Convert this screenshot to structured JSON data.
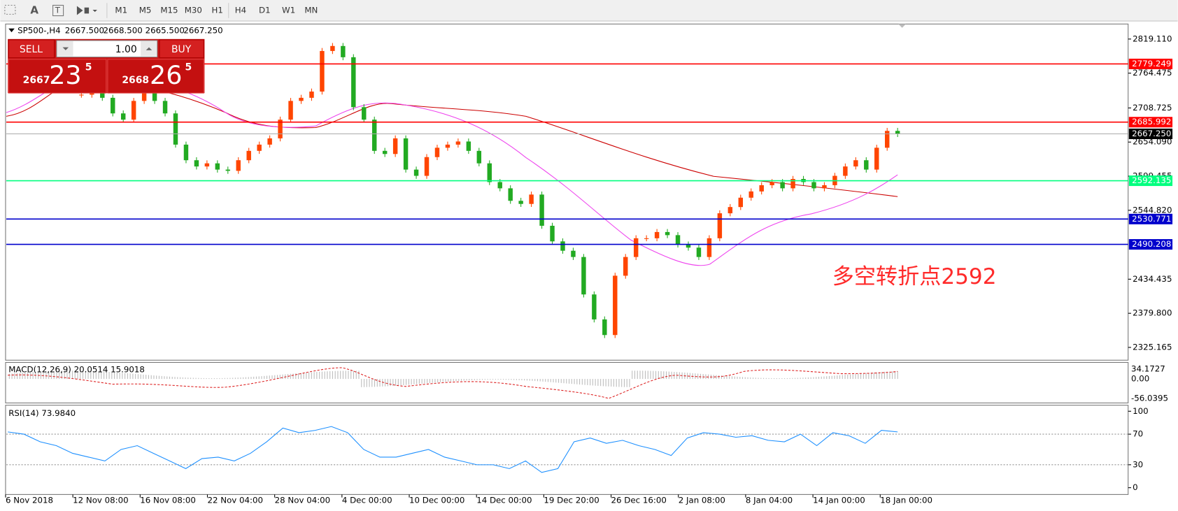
{
  "toolbar": {
    "timeframes": [
      "M1",
      "M5",
      "M15",
      "M30",
      "H1",
      "H4",
      "D1",
      "W1",
      "MN"
    ]
  },
  "chart": {
    "type": "candlestick",
    "symbol": "SP500-,H4",
    "ohlc": [
      "2667.500",
      "2668.500",
      "2665.500",
      "2667.250"
    ],
    "ylim": [
      2304.7,
      2843.2
    ],
    "yticks": [
      {
        "value": 2819.11,
        "label": "2819.110"
      },
      {
        "value": 2764.475,
        "label": "2764.475"
      },
      {
        "value": 2708.725,
        "label": "2708.725"
      },
      {
        "value": 2654.09,
        "label": "2654.090"
      },
      {
        "value": 2599.455,
        "label": "2599.455"
      },
      {
        "value": 2544.82,
        "label": "2544.820"
      },
      {
        "value": 2434.435,
        "label": "2434.435"
      },
      {
        "value": 2379.8,
        "label": "2379.800"
      },
      {
        "value": 2325.165,
        "label": "2325.165"
      }
    ],
    "levels": [
      {
        "value": 2779.249,
        "label": "2779.249",
        "color": "#ff0000"
      },
      {
        "value": 2685.992,
        "label": "2685.992",
        "color": "#ff0000"
      },
      {
        "value": 2592.135,
        "label": "2592.135",
        "color": "#00ff7f"
      },
      {
        "value": 2530.771,
        "label": "2530.771",
        "color": "#0000cc"
      },
      {
        "value": 2490.208,
        "label": "2490.208",
        "color": "#0000cc"
      }
    ],
    "current": {
      "value": 2667.25,
      "label": "2667.250"
    },
    "up_color": "#ff4500",
    "down_color": "#22aa22",
    "closes": [
      2730,
      2735,
      2725,
      2700,
      2690,
      2720,
      2735,
      2720,
      2700,
      2650,
      2625,
      2615,
      2620,
      2610,
      2608,
      2625,
      2640,
      2650,
      2660,
      2690,
      2720,
      2725,
      2735,
      2800,
      2808,
      2790,
      2710,
      2690,
      2640,
      2635,
      2660,
      2610,
      2600,
      2630,
      2645,
      2650,
      2655,
      2640,
      2620,
      2590,
      2580,
      2560,
      2555,
      2570,
      2520,
      2495,
      2480,
      2470,
      2410,
      2370,
      2345,
      2440,
      2470,
      2500,
      2500,
      2510,
      2505,
      2490,
      2485,
      2470,
      2500,
      2540,
      2550,
      2565,
      2575,
      2585,
      2590,
      2580,
      2595,
      2590,
      2580,
      2585,
      2600,
      2615,
      2625,
      2610,
      2645,
      2672,
      2667
    ],
    "x_labels": [
      "6 Nov 2018",
      "12 Nov 08:00",
      "16 Nov 08:00",
      "22 Nov 04:00",
      "28 Nov 04:00",
      "4 Dec 00:00",
      "10 Dec 00:00",
      "14 Dec 00:00",
      "19 Dec 20:00",
      "26 Dec 16:00",
      "2 Jan 08:00",
      "8 Jan 04:00",
      "14 Jan 00:00",
      "18 Jan 00:00"
    ],
    "annotation": "多空转折点2592"
  },
  "trade_panel": {
    "sell": "SELL",
    "buy": "BUY",
    "lots": "1.00",
    "bid": [
      "2667",
      "23",
      "5"
    ],
    "ask": [
      "2668",
      "26",
      "5"
    ]
  },
  "macd": {
    "label": "MACD(12,26,9) 20.0514 15.9018",
    "ticks": [
      "34.1727",
      "0.00",
      "-56.0395"
    ]
  },
  "rsi": {
    "label": "RSI(14) 73.9840",
    "ylim": [
      -8.9,
      107.9
    ],
    "yticks": [
      100,
      70,
      30,
      0
    ],
    "levels": [
      70,
      30
    ],
    "color": "#1e90ff",
    "values": [
      73,
      70,
      60,
      55,
      45,
      40,
      35,
      50,
      55,
      45,
      35,
      25,
      38,
      40,
      35,
      45,
      60,
      78,
      72,
      75,
      80,
      72,
      50,
      40,
      40,
      45,
      50,
      40,
      35,
      30,
      30,
      25,
      35,
      20,
      25,
      60,
      65,
      58,
      62,
      55,
      50,
      42,
      65,
      72,
      70,
      66,
      68,
      62,
      60,
      70,
      55,
      72,
      68,
      58,
      75,
      73
    ]
  }
}
